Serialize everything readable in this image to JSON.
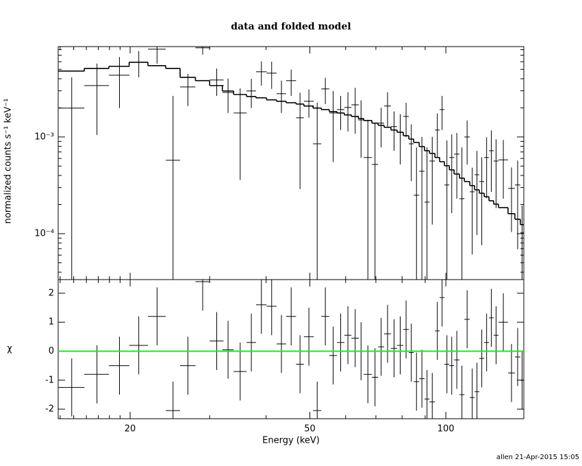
{
  "chart_data": [
    {
      "type": "spectrum",
      "title": "data and folded model",
      "ylabel": "normalized counts s⁻¹ keV⁻¹",
      "log_x": true,
      "log_y": true,
      "xlim": [
        13.86,
        148.8
      ],
      "xticks": [
        20,
        50,
        100
      ],
      "xminor_ticks": [
        14,
        15,
        16,
        17,
        18,
        19,
        30,
        40,
        60,
        70,
        80,
        90
      ],
      "ylim": [
        3.35e-05,
        0.0086
      ],
      "yticks": [
        {
          "value": 0.0001,
          "label": "10⁻⁴"
        },
        {
          "value": 0.001,
          "label": "10⁻³"
        }
      ],
      "yminor_ticks": [
        4e-05,
        5e-05,
        6e-05,
        7e-05,
        8e-05,
        9e-05,
        0.0002,
        0.0003,
        0.0004,
        0.0005,
        0.0006,
        0.0007,
        0.0008,
        0.0009,
        0.002,
        0.003,
        0.004,
        0.005,
        0.006,
        0.007,
        0.008
      ],
      "x": [
        14.85,
        16.89,
        18.94,
        20.9,
        22.94,
        24.89,
        26.85,
        28.95,
        31.1,
        32.95,
        35.05,
        37.1,
        39.05,
        41.15,
        43.25,
        45.45,
        47.55,
        49.75,
        51.9,
        54.1,
        56.3,
        58.5,
        60.7,
        63.0,
        64.9,
        67.2,
        69.7,
        71.9,
        74.3,
        76.8,
        79.25,
        81.65,
        83.85,
        86.1,
        88.5,
        90.85,
        93.3,
        95.75,
        98.1,
        100.55,
        103.05,
        105.75,
        108.55,
        111.45,
        114.4,
        117.2,
        120.1,
        123.1,
        126.1,
        129.2,
        134.05,
        139.75,
        144.2,
        147.5
      ],
      "xerr": [
        0.99,
        1.06,
        0.99,
        1.0,
        1.04,
        0.91,
        1.05,
        1.05,
        1.1,
        0.95,
        1.15,
        0.9,
        1.05,
        1.05,
        1.05,
        1.15,
        0.95,
        1.25,
        1.1,
        1.1,
        1.1,
        1.1,
        1.1,
        1.2,
        0.9,
        1.4,
        1.1,
        1.1,
        1.3,
        1.2,
        1.25,
        1.15,
        1.05,
        1.2,
        1.2,
        1.15,
        1.3,
        1.15,
        1.2,
        1.25,
        1.25,
        1.45,
        1.35,
        1.55,
        1.4,
        1.4,
        1.5,
        1.5,
        1.5,
        1.6,
        3.25,
        2.45,
        2.0,
        1.3
      ],
      "data": {
        "color": "#000000",
        "values": [
          0.00199,
          0.0034,
          0.00435,
          0.00593,
          0.00809,
          0.000574,
          0.00329,
          0.00836,
          0.00388,
          0.00289,
          0.00177,
          0.00299,
          0.00472,
          0.00457,
          0.0028,
          0.00382,
          0.00158,
          0.00234,
          0.000849,
          0.00314,
          0.00177,
          0.00192,
          0.00202,
          0.00215,
          0.0015,
          0.000613,
          0.00052,
          0.00139,
          0.00209,
          0.00128,
          0.00112,
          0.00163,
          0.000849,
          0.00025,
          0.000442,
          0.000212,
          0.000564,
          0.00118,
          0.00192,
          0.000319,
          0.000613,
          0.000665,
          0.00023,
          0.001,
          0.000271,
          0.000407,
          0.000346,
          0.000613,
          0.000721,
          0.000564,
          0.00058,
          0.000294,
          0.000319,
          0.000102
        ],
        "errors": [
          0.00215,
          0.00235,
          0.00236,
          0.00179,
          0.00235,
          0.00209,
          0.0012,
          0.00127,
          0.00122,
          0.00112,
          0.00141,
          0.001,
          0.00132,
          0.00143,
          0.00103,
          0.00116,
          0.00129,
          0.00076,
          0.00141,
          0.00095,
          0.00122,
          0.00074,
          0.00088,
          0.00107,
          0.00089,
          0.00089,
          0.00087,
          0.00061,
          0.00081,
          0.00056,
          0.0006,
          0.00063,
          0.0005,
          0.00053,
          0.00056,
          0.00057,
          0.00044,
          0.00057,
          0.00074,
          0.0006,
          0.00045,
          0.000435,
          0.00055,
          0.00048,
          0.00021,
          0.00031,
          0.00027,
          0.00038,
          0.00045,
          0.00038,
          0.00035,
          0.00019,
          0.00025,
          9.3e-05
        ]
      },
      "model": {
        "color": "#000000",
        "values": [
          0.0048,
          0.00512,
          0.00538,
          0.00593,
          0.00546,
          0.00512,
          0.00414,
          0.00382,
          0.0034,
          0.00299,
          0.00275,
          0.00262,
          0.00254,
          0.00242,
          0.00234,
          0.00226,
          0.00219,
          0.00209,
          0.00199,
          0.00192,
          0.00183,
          0.00177,
          0.00169,
          0.00163,
          0.00155,
          0.00148,
          0.00139,
          0.00132,
          0.00126,
          0.00118,
          0.00112,
          0.00103,
          0.000952,
          0.000878,
          0.000796,
          0.000721,
          0.000676,
          0.000613,
          0.000555,
          0.000504,
          0.000457,
          0.000414,
          0.000375,
          0.000346,
          0.000314,
          0.000284,
          0.000262,
          0.000241,
          0.000219,
          0.000202,
          0.000186,
          0.000161,
          0.000141,
          0.000124
        ]
      }
    },
    {
      "type": "residuals",
      "xlabel": "Energy (keV)",
      "ylabel": "χ",
      "color": "#000000",
      "zero_line_color": "#00ff00",
      "ylim": [
        -2.33,
        2.47
      ],
      "yticks": [
        -2,
        -1,
        0,
        1,
        2
      ],
      "values": [
        -1.25,
        -0.8,
        -0.5,
        0.2,
        1.2,
        -2.05,
        -0.5,
        2.4,
        0.35,
        0.05,
        -0.7,
        0.3,
        1.6,
        1.55,
        0.25,
        1.2,
        -0.45,
        0.5,
        -2.05,
        1.2,
        -0.15,
        0.3,
        0.55,
        0.45,
        0.0,
        -0.8,
        -0.9,
        0.15,
        0.6,
        0.1,
        0.2,
        0.75,
        -0.05,
        -1.05,
        -0.95,
        -1.65,
        -1.75,
        0.7,
        1.85,
        -0.45,
        -0.5,
        -0.3,
        -1.5,
        1.1,
        -1.6,
        -1.4,
        -0.25,
        0.3,
        1.15,
        0.55,
        1.0,
        -0.75,
        -0.2,
        -1.0
      ],
      "errors": [
        1,
        1,
        1,
        1,
        1,
        1,
        1,
        1,
        1,
        1,
        1,
        1,
        1,
        1,
        1,
        1,
        1,
        1,
        1,
        1,
        1,
        1,
        1,
        1,
        1,
        1,
        1,
        1,
        1,
        1,
        1,
        1,
        1,
        1,
        1,
        1,
        1,
        1,
        1,
        1,
        1,
        1,
        1,
        1,
        1,
        1,
        1,
        1,
        1,
        1,
        1,
        1,
        1,
        1
      ]
    },
    {
      "type": "footer",
      "text": "allen 21-Apr-2015 15:05"
    }
  ]
}
